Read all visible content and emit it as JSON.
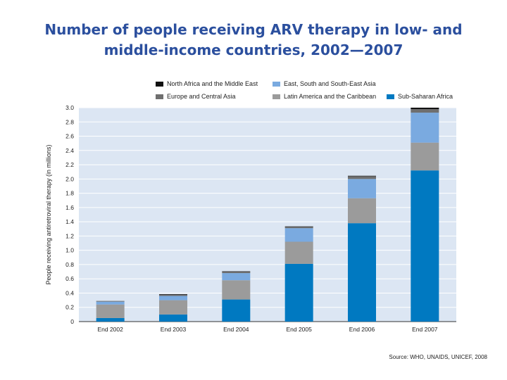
{
  "title_lines": [
    "Number of people receiving ARV therapy in low- and",
    "middle-income countries, 2002—2007"
  ],
  "source": "Source: WHO, UNAIDS, UNICEF, 2008",
  "colors": {
    "sub_saharan_africa": "#0079c1",
    "latin_america_caribbean": "#9b9b9b",
    "east_south_southeast_asia": "#7aaae0",
    "europe_central_asia": "#6f6f6f",
    "north_africa_middle_east": "#111111",
    "plot_background": "#dce6f3",
    "gridline": "#ffffff"
  },
  "chart_data": {
    "type": "bar",
    "stacked": true,
    "categories": [
      "End 2002",
      "End 2003",
      "End 2004",
      "End 2005",
      "End 2006",
      "End 2007"
    ],
    "ylabel": "People receiving antiretroviral therapy (in millions)",
    "ylim": [
      0,
      3.0
    ],
    "yticks": [
      "0",
      "0.2",
      "0.4",
      "0.6",
      "0.8",
      "1.0",
      "1.2",
      "1.4",
      "1.6",
      "1.8",
      "2.0",
      "2.2",
      "2.4",
      "2.6",
      "2.8",
      "3.0"
    ],
    "grid": true,
    "legend_position": "top",
    "series": [
      {
        "name": "Sub-Saharan Africa",
        "color": "#0079c1",
        "values": [
          0.05,
          0.1,
          0.31,
          0.81,
          1.38,
          2.12
        ]
      },
      {
        "name": "Latin America and the Caribbean",
        "color": "#9b9b9b",
        "values": [
          0.19,
          0.2,
          0.27,
          0.31,
          0.35,
          0.39
        ]
      },
      {
        "name": "East, South and South-East Asia",
        "color": "#7aaae0",
        "values": [
          0.04,
          0.06,
          0.1,
          0.19,
          0.27,
          0.42
        ]
      },
      {
        "name": "Europe and Central Asia",
        "color": "#6f6f6f",
        "values": [
          0.01,
          0.02,
          0.02,
          0.02,
          0.04,
          0.05
        ]
      },
      {
        "name": "North Africa and the Middle East",
        "color": "#111111",
        "values": [
          0.0,
          0.005,
          0.005,
          0.005,
          0.005,
          0.02
        ]
      }
    ],
    "legend": [
      {
        "name": "North Africa and the Middle East",
        "color": "#111111"
      },
      {
        "name": "East, South and South-East Asia",
        "color": "#7aaae0"
      },
      {
        "name": "Europe and Central Asia",
        "color": "#6f6f6f"
      },
      {
        "name": "Latin America and the Caribbean",
        "color": "#9b9b9b"
      },
      {
        "name": "Sub-Saharan Africa",
        "color": "#0079c1"
      }
    ]
  }
}
